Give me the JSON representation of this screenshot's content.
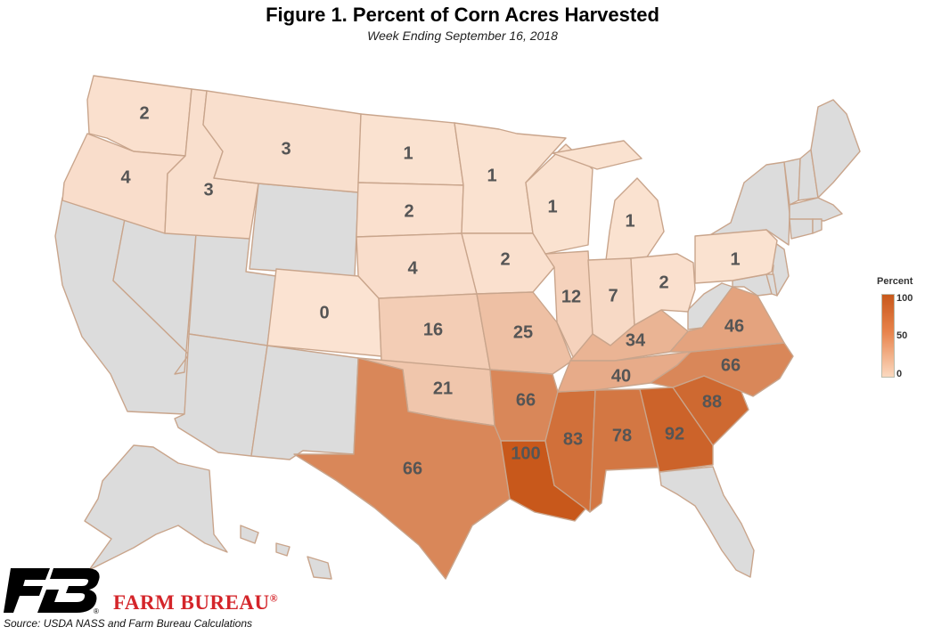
{
  "title": "Figure 1. Percent of Corn Acres Harvested",
  "subtitle": "Week Ending September 16, 2018",
  "legend": {
    "title": "Percent",
    "max": "100",
    "mid": "50",
    "min": "0"
  },
  "colors": {
    "no_data": "#dcdcdc",
    "low": "#fbe3d2",
    "high": "#c8581b",
    "border": "#c9a58c"
  },
  "states": [
    {
      "id": "WA",
      "value": "2"
    },
    {
      "id": "OR",
      "value": "4"
    },
    {
      "id": "ID",
      "value": "3"
    },
    {
      "id": "MT",
      "value": "3"
    },
    {
      "id": "ND",
      "value": "1"
    },
    {
      "id": "SD",
      "value": "2"
    },
    {
      "id": "NE",
      "value": "4"
    },
    {
      "id": "CO",
      "value": "0"
    },
    {
      "id": "KS",
      "value": "16"
    },
    {
      "id": "OK",
      "value": "21"
    },
    {
      "id": "TX",
      "value": "66"
    },
    {
      "id": "MN",
      "value": "1"
    },
    {
      "id": "IA",
      "value": "2"
    },
    {
      "id": "MO",
      "value": "25"
    },
    {
      "id": "AR",
      "value": "66"
    },
    {
      "id": "LA",
      "value": "100"
    },
    {
      "id": "WI",
      "value": "1"
    },
    {
      "id": "IL",
      "value": "12"
    },
    {
      "id": "MS",
      "value": "83"
    },
    {
      "id": "MI",
      "value": "1"
    },
    {
      "id": "IN",
      "value": "7"
    },
    {
      "id": "KY",
      "value": "34"
    },
    {
      "id": "TN",
      "value": "40"
    },
    {
      "id": "AL",
      "value": "78"
    },
    {
      "id": "OH",
      "value": "2"
    },
    {
      "id": "GA",
      "value": "92"
    },
    {
      "id": "SC",
      "value": "88"
    },
    {
      "id": "NC",
      "value": "66"
    },
    {
      "id": "VA",
      "value": "46"
    },
    {
      "id": "PA",
      "value": "1"
    }
  ],
  "no_data_states": [
    "CA",
    "NV",
    "UT",
    "AZ",
    "NM",
    "WY",
    "AK",
    "HI",
    "FL",
    "WV",
    "NY",
    "VT",
    "NH",
    "ME",
    "MA",
    "CT",
    "RI",
    "NJ",
    "MD",
    "DE"
  ],
  "brand": "FARM BUREAU",
  "brand_mark": "®",
  "source": "Source: USDA NASS and Farm Bureau Calculations"
}
